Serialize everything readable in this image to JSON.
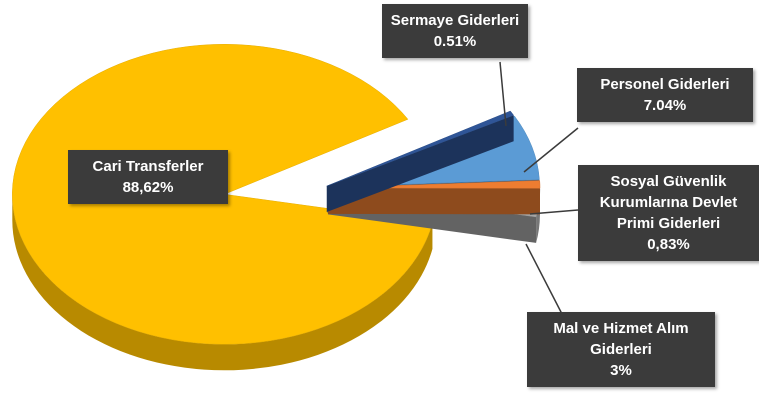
{
  "chart_data": {
    "type": "pie",
    "categories": [
      "Sermaye Giderleri",
      "Personel Giderleri",
      "Sosyal Güvenlik Kurumlarına Devlet Primi Giderleri",
      "Mal ve Hizmet Alım Giderleri",
      "Cari Transferler"
    ],
    "values": [
      0.51,
      7.04,
      0.83,
      3,
      88.62
    ],
    "value_labels": [
      "0.51%",
      "7.04%",
      "0,83%",
      "3%",
      "88,62%"
    ],
    "colors": [
      "#2f5597",
      "#5b9bd5",
      "#ed7d31",
      "#a5a5a5",
      "#ffc000"
    ]
  }
}
